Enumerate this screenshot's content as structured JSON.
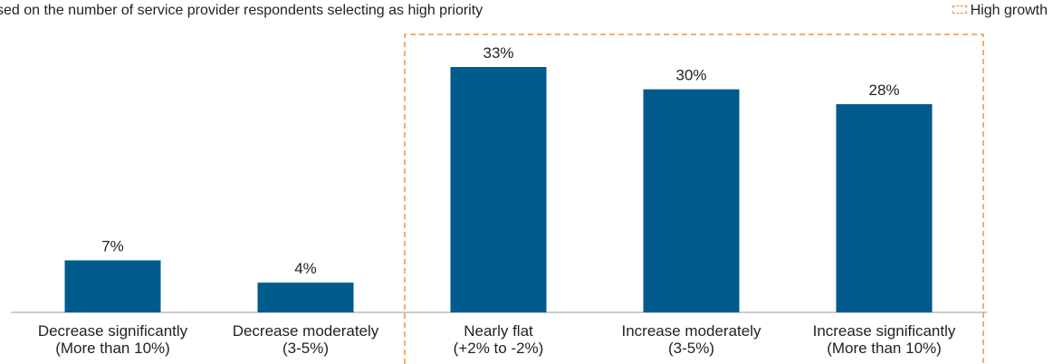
{
  "subtitle": "sed on the number of service provider respondents selecting as high priority",
  "legend": {
    "label": "High growth",
    "color": "#f5923e"
  },
  "chart_data": {
    "type": "bar",
    "categories": [
      [
        "Decrease significantly",
        "(More than 10%)"
      ],
      [
        "Decrease moderately",
        "(3-5%)"
      ],
      [
        "Nearly flat",
        "(+2% to -2%)"
      ],
      [
        "Increase moderately",
        "(3-5%)"
      ],
      [
        "Increase significantly",
        "(More than 10%)"
      ]
    ],
    "values": [
      7,
      4,
      33,
      30,
      28
    ],
    "data_labels": [
      "7%",
      "4%",
      "33%",
      "30%",
      "28%"
    ],
    "highlight": {
      "label": "High growth",
      "categories": [
        2,
        3,
        4
      ]
    },
    "bar_color": "#005a8c",
    "ylim": [
      0,
      33
    ],
    "grid": false
  }
}
